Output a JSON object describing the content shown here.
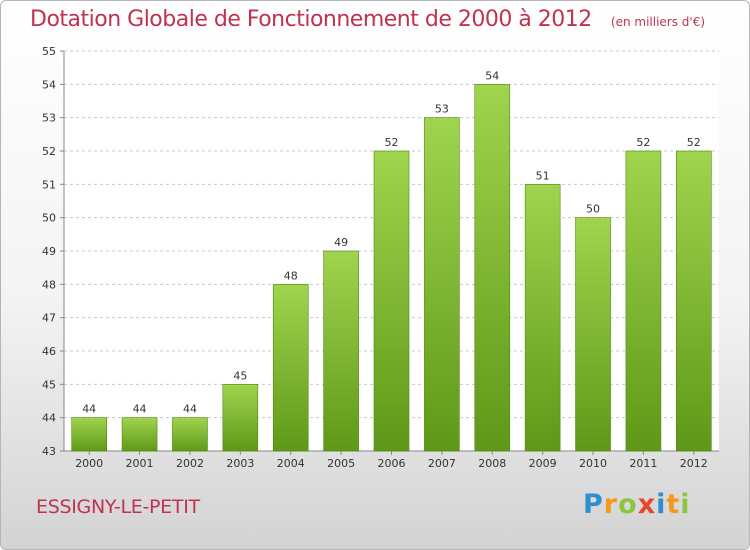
{
  "title": {
    "main": "Dotation Globale de Fonctionnement de 2000 à 2012",
    "unit": "(en milliers d'€)"
  },
  "city": "ESSIGNY-LE-PETIT",
  "logo": {
    "letters": [
      "P",
      "r",
      "o",
      "x",
      "i",
      "t",
      "i"
    ],
    "colors": [
      "#2e8fd0",
      "#f29a1d",
      "#8cc63f",
      "#e8452e",
      "#2e8fd0",
      "#f29a1d",
      "#8cc63f"
    ]
  },
  "colors": {
    "bar_top": "#9fd44e",
    "bar_bottom": "#5f9818",
    "grid": "#c8c8c8",
    "title": "#c0334f"
  },
  "chart_data": {
    "type": "bar",
    "categories": [
      "2000",
      "2001",
      "2002",
      "2003",
      "2004",
      "2005",
      "2006",
      "2007",
      "2008",
      "2009",
      "2010",
      "2011",
      "2012"
    ],
    "values": [
      44,
      44,
      44,
      45,
      48,
      49,
      52,
      53,
      54,
      51,
      50,
      52,
      52
    ],
    "ylim": [
      43,
      55
    ],
    "yticks": [
      43,
      44,
      45,
      46,
      47,
      48,
      49,
      50,
      51,
      52,
      53,
      54,
      55
    ],
    "grid": true,
    "legend": "none"
  }
}
